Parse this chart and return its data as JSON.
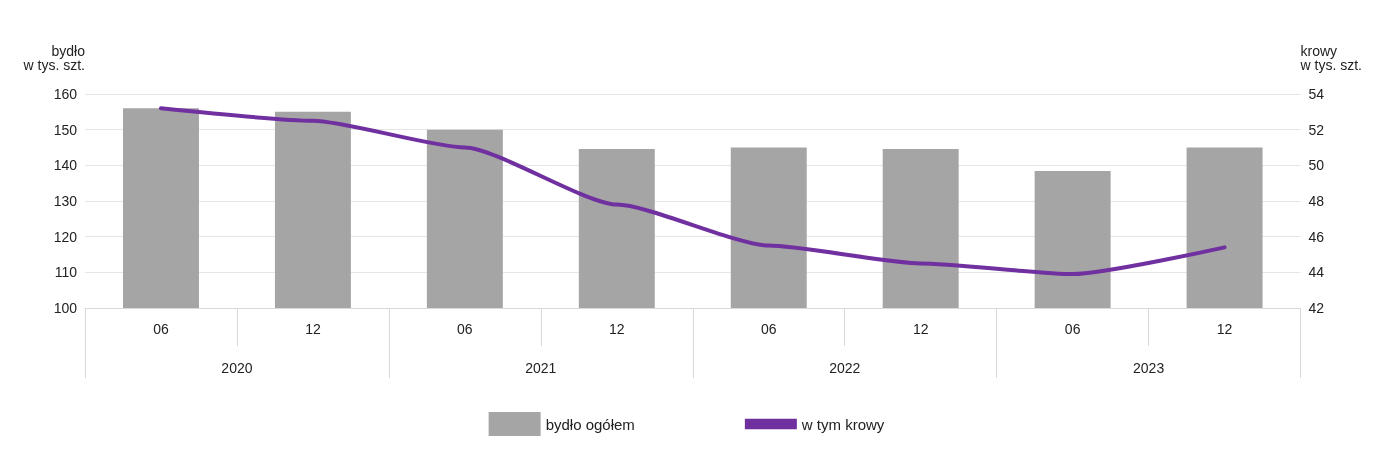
{
  "chart_data": {
    "type": "bar",
    "categories": [
      "06",
      "12",
      "06",
      "12",
      "06",
      "12",
      "06",
      "12"
    ],
    "annotations": [
      "2020",
      "2021",
      "2022",
      "2023"
    ],
    "ylabel": "bydło\nw tys. szt.",
    "y2label": "krowy\nw tys. szt.",
    "series": [
      {
        "name": "bydło ogółem",
        "color": "#a5a5a5",
        "values": [
          156,
          155,
          150,
          144.6,
          145,
          144.6,
          138.4,
          145
        ]
      },
      {
        "name": "w tym krowy",
        "type": "line",
        "axis": "y2",
        "color": "#7030a0",
        "values": [
          53.2,
          52.5,
          51.0,
          47.8,
          45.5,
          44.5,
          43.9,
          45.4
        ]
      }
    ],
    "ylim": [
      100,
      160
    ],
    "yticks": [
      100,
      110,
      120,
      130,
      140,
      150,
      160
    ],
    "y2lim": [
      42,
      54
    ],
    "y2ticks": [
      42,
      44,
      46,
      48,
      50,
      52,
      54
    ],
    "grid": "y",
    "legend": "bottom",
    "marker": "none",
    "line_style": "solid"
  }
}
